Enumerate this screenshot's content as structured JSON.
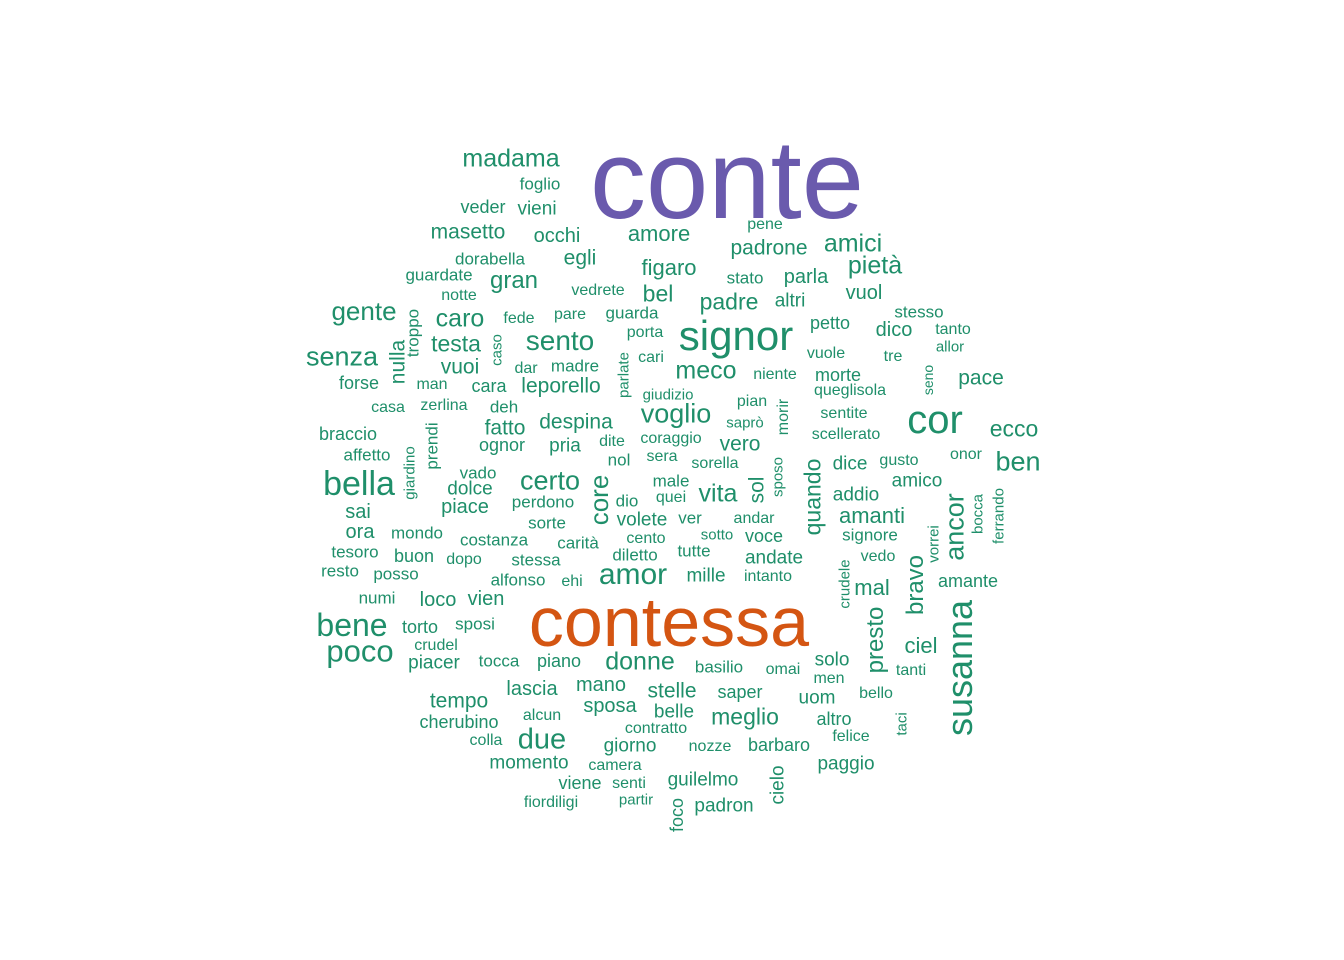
{
  "colors": {
    "large": "#6a5aad",
    "second": "#d45512",
    "common": "#1f8f6a"
  },
  "words": [
    {
      "text": "conte",
      "tier": "large"
    },
    {
      "text": "contessa",
      "tier": "second"
    },
    {
      "text": "signor",
      "tier": "common"
    },
    {
      "text": "cor",
      "tier": "common"
    },
    {
      "text": "susanna",
      "tier": "common"
    },
    {
      "text": "bella",
      "tier": "common"
    },
    {
      "text": "bene",
      "tier": "common"
    },
    {
      "text": "poco",
      "tier": "common"
    },
    {
      "text": "amor",
      "tier": "common"
    },
    {
      "text": "due",
      "tier": "common"
    },
    {
      "text": "senza",
      "tier": "common"
    },
    {
      "text": "gente",
      "tier": "common"
    },
    {
      "text": "sento",
      "tier": "common"
    },
    {
      "text": "ben",
      "tier": "common"
    },
    {
      "text": "certo",
      "tier": "common"
    },
    {
      "text": "voglio",
      "tier": "common"
    },
    {
      "text": "ancor",
      "tier": "common"
    },
    {
      "text": "madama",
      "tier": "common"
    },
    {
      "text": "pietà",
      "tier": "common"
    },
    {
      "text": "amici",
      "tier": "common"
    },
    {
      "text": "meco",
      "tier": "common"
    },
    {
      "text": "core",
      "tier": "common"
    },
    {
      "text": "donne",
      "tier": "common"
    },
    {
      "text": "vita",
      "tier": "common"
    },
    {
      "text": "caro",
      "tier": "common"
    },
    {
      "text": "gran",
      "tier": "common"
    },
    {
      "text": "ecco",
      "tier": "common"
    },
    {
      "text": "quando",
      "tier": "common"
    },
    {
      "text": "presto",
      "tier": "common"
    },
    {
      "text": "bravo",
      "tier": "common"
    },
    {
      "text": "amanti",
      "tier": "common"
    },
    {
      "text": "meglio",
      "tier": "common"
    },
    {
      "text": "padre",
      "tier": "common"
    },
    {
      "text": "figaro",
      "tier": "common"
    },
    {
      "text": "bel",
      "tier": "common"
    },
    {
      "text": "testa",
      "tier": "common"
    },
    {
      "text": "amore",
      "tier": "common"
    },
    {
      "text": "padrone",
      "tier": "common"
    },
    {
      "text": "masetto",
      "tier": "common"
    },
    {
      "text": "despina",
      "tier": "common"
    },
    {
      "text": "fatto",
      "tier": "common"
    },
    {
      "text": "pace",
      "tier": "common"
    },
    {
      "text": "stelle",
      "tier": "common"
    },
    {
      "text": "mal",
      "tier": "common"
    },
    {
      "text": "ciel",
      "tier": "common"
    },
    {
      "text": "egli",
      "tier": "common"
    },
    {
      "text": "occhi",
      "tier": "common"
    },
    {
      "text": "vuoi",
      "tier": "common"
    },
    {
      "text": "tempo",
      "tier": "common"
    },
    {
      "text": "sposa",
      "tier": "common"
    },
    {
      "text": "vuol",
      "tier": "common"
    },
    {
      "text": "leporello",
      "tier": "common"
    },
    {
      "text": "vero",
      "tier": "common"
    },
    {
      "text": "nulla",
      "tier": "common"
    },
    {
      "text": "dolce",
      "tier": "common"
    },
    {
      "text": "mano",
      "tier": "common"
    },
    {
      "text": "lascia",
      "tier": "common"
    },
    {
      "text": "giorno",
      "tier": "common"
    },
    {
      "text": "belle",
      "tier": "common"
    },
    {
      "text": "sol",
      "tier": "common"
    },
    {
      "text": "parla",
      "tier": "common"
    },
    {
      "text": "sai",
      "tier": "common"
    },
    {
      "text": "ora",
      "tier": "common"
    },
    {
      "text": "loco",
      "tier": "common"
    },
    {
      "text": "dico",
      "tier": "common"
    },
    {
      "text": "piace",
      "tier": "common"
    },
    {
      "text": "volete",
      "tier": "common"
    },
    {
      "text": "mille",
      "tier": "common"
    },
    {
      "text": "andate",
      "tier": "common"
    },
    {
      "text": "dice",
      "tier": "common"
    },
    {
      "text": "vien",
      "tier": "common"
    },
    {
      "text": "cielo",
      "tier": "common"
    },
    {
      "text": "paggio",
      "tier": "common"
    },
    {
      "text": "solo",
      "tier": "common"
    },
    {
      "text": "uom",
      "tier": "common"
    },
    {
      "text": "amico",
      "tier": "common"
    },
    {
      "text": "altri",
      "tier": "common"
    },
    {
      "text": "amante",
      "tier": "common"
    },
    {
      "text": "addio",
      "tier": "common"
    },
    {
      "text": "petto",
      "tier": "common"
    },
    {
      "text": "vieni",
      "tier": "common"
    },
    {
      "text": "piacer",
      "tier": "common"
    },
    {
      "text": "guilelmo",
      "tier": "common"
    },
    {
      "text": "padron",
      "tier": "common"
    },
    {
      "text": "momento",
      "tier": "common"
    },
    {
      "text": "cherubino",
      "tier": "common"
    },
    {
      "text": "morte",
      "tier": "common"
    },
    {
      "text": "forse",
      "tier": "common"
    },
    {
      "text": "braccio",
      "tier": "common"
    },
    {
      "text": "pria",
      "tier": "common"
    },
    {
      "text": "ognor",
      "tier": "common"
    },
    {
      "text": "tocca",
      "tier": "common"
    },
    {
      "text": "piano",
      "tier": "common"
    },
    {
      "text": "barbaro",
      "tier": "common"
    },
    {
      "text": "altro",
      "tier": "common"
    },
    {
      "text": "sposi",
      "tier": "common"
    },
    {
      "text": "torto",
      "tier": "common"
    },
    {
      "text": "foglio",
      "tier": "common"
    },
    {
      "text": "veder",
      "tier": "common"
    },
    {
      "text": "tesoro",
      "tier": "common"
    },
    {
      "text": "mondo",
      "tier": "common"
    },
    {
      "text": "buon",
      "tier": "common"
    },
    {
      "text": "posso",
      "tier": "common"
    },
    {
      "text": "resto",
      "tier": "common"
    },
    {
      "text": "numi",
      "tier": "common"
    },
    {
      "text": "alfonso",
      "tier": "common"
    },
    {
      "text": "stessa",
      "tier": "common"
    },
    {
      "text": "carità",
      "tier": "common"
    },
    {
      "text": "costanza",
      "tier": "common"
    },
    {
      "text": "sorte",
      "tier": "common"
    },
    {
      "text": "perdono",
      "tier": "common"
    },
    {
      "text": "vado",
      "tier": "common"
    },
    {
      "text": "affetto",
      "tier": "common"
    },
    {
      "text": "casa",
      "tier": "common"
    },
    {
      "text": "zerlina",
      "tier": "common"
    },
    {
      "text": "deh",
      "tier": "common"
    },
    {
      "text": "cara",
      "tier": "common"
    },
    {
      "text": "man",
      "tier": "common"
    },
    {
      "text": "dar",
      "tier": "common"
    },
    {
      "text": "madre",
      "tier": "common"
    },
    {
      "text": "notte",
      "tier": "common"
    },
    {
      "text": "guardate",
      "tier": "common"
    },
    {
      "text": "dorabella",
      "tier": "common"
    },
    {
      "text": "fede",
      "tier": "common"
    },
    {
      "text": "pare",
      "tier": "common"
    },
    {
      "text": "guarda",
      "tier": "common"
    },
    {
      "text": "vedrete",
      "tier": "common"
    },
    {
      "text": "porta",
      "tier": "common"
    },
    {
      "text": "cari",
      "tier": "common"
    },
    {
      "text": "stato",
      "tier": "common"
    },
    {
      "text": "pene",
      "tier": "common"
    },
    {
      "text": "stesso",
      "tier": "common"
    },
    {
      "text": "tanto",
      "tier": "common"
    },
    {
      "text": "allor",
      "tier": "common"
    },
    {
      "text": "tre",
      "tier": "common"
    },
    {
      "text": "vuole",
      "tier": "common"
    },
    {
      "text": "niente",
      "tier": "common"
    },
    {
      "text": "queglisola",
      "tier": "common"
    },
    {
      "text": "giudizio",
      "tier": "common"
    },
    {
      "text": "pian",
      "tier": "common"
    },
    {
      "text": "saprò",
      "tier": "common"
    },
    {
      "text": "sentite",
      "tier": "common"
    },
    {
      "text": "scellerato",
      "tier": "common"
    },
    {
      "text": "dite",
      "tier": "common"
    },
    {
      "text": "coraggio",
      "tier": "common"
    },
    {
      "text": "nol",
      "tier": "common"
    },
    {
      "text": "sera",
      "tier": "common"
    },
    {
      "text": "sorella",
      "tier": "common"
    },
    {
      "text": "gusto",
      "tier": "common"
    },
    {
      "text": "onor",
      "tier": "common"
    },
    {
      "text": "male",
      "tier": "common"
    },
    {
      "text": "dio",
      "tier": "common"
    },
    {
      "text": "quei",
      "tier": "common"
    },
    {
      "text": "ver",
      "tier": "common"
    },
    {
      "text": "andar",
      "tier": "common"
    },
    {
      "text": "cento",
      "tier": "common"
    },
    {
      "text": "sotto",
      "tier": "common"
    },
    {
      "text": "voce",
      "tier": "common"
    },
    {
      "text": "diletto",
      "tier": "common"
    },
    {
      "text": "tutte",
      "tier": "common"
    },
    {
      "text": "intanto",
      "tier": "common"
    },
    {
      "text": "signore",
      "tier": "common"
    },
    {
      "text": "vedo",
      "tier": "common"
    },
    {
      "text": "dopo",
      "tier": "common"
    },
    {
      "text": "ehi",
      "tier": "common"
    },
    {
      "text": "crudel",
      "tier": "common"
    },
    {
      "text": "basilio",
      "tier": "common"
    },
    {
      "text": "omai",
      "tier": "common"
    },
    {
      "text": "men",
      "tier": "common"
    },
    {
      "text": "tanti",
      "tier": "common"
    },
    {
      "text": "bello",
      "tier": "common"
    },
    {
      "text": "saper",
      "tier": "common"
    },
    {
      "text": "alcun",
      "tier": "common"
    },
    {
      "text": "contratto",
      "tier": "common"
    },
    {
      "text": "colla",
      "tier": "common"
    },
    {
      "text": "nozze",
      "tier": "common"
    },
    {
      "text": "felice",
      "tier": "common"
    },
    {
      "text": "camera",
      "tier": "common"
    },
    {
      "text": "viene",
      "tier": "common"
    },
    {
      "text": "senti",
      "tier": "common"
    },
    {
      "text": "partir",
      "tier": "common"
    },
    {
      "text": "fiordiligi",
      "tier": "common"
    },
    {
      "text": "foco",
      "tier": "common"
    },
    {
      "text": "troppo",
      "tier": "common"
    },
    {
      "text": "caso",
      "tier": "common"
    },
    {
      "text": "parlate",
      "tier": "common"
    },
    {
      "text": "prendi",
      "tier": "common"
    },
    {
      "text": "giardino",
      "tier": "common"
    },
    {
      "text": "morir",
      "tier": "common"
    },
    {
      "text": "sposo",
      "tier": "common"
    },
    {
      "text": "seno",
      "tier": "common"
    },
    {
      "text": "bocca",
      "tier": "common"
    },
    {
      "text": "ferrando",
      "tier": "common"
    },
    {
      "text": "vorrei",
      "tier": "common"
    },
    {
      "text": "crudele",
      "tier": "common"
    },
    {
      "text": "taci",
      "tier": "common"
    }
  ]
}
